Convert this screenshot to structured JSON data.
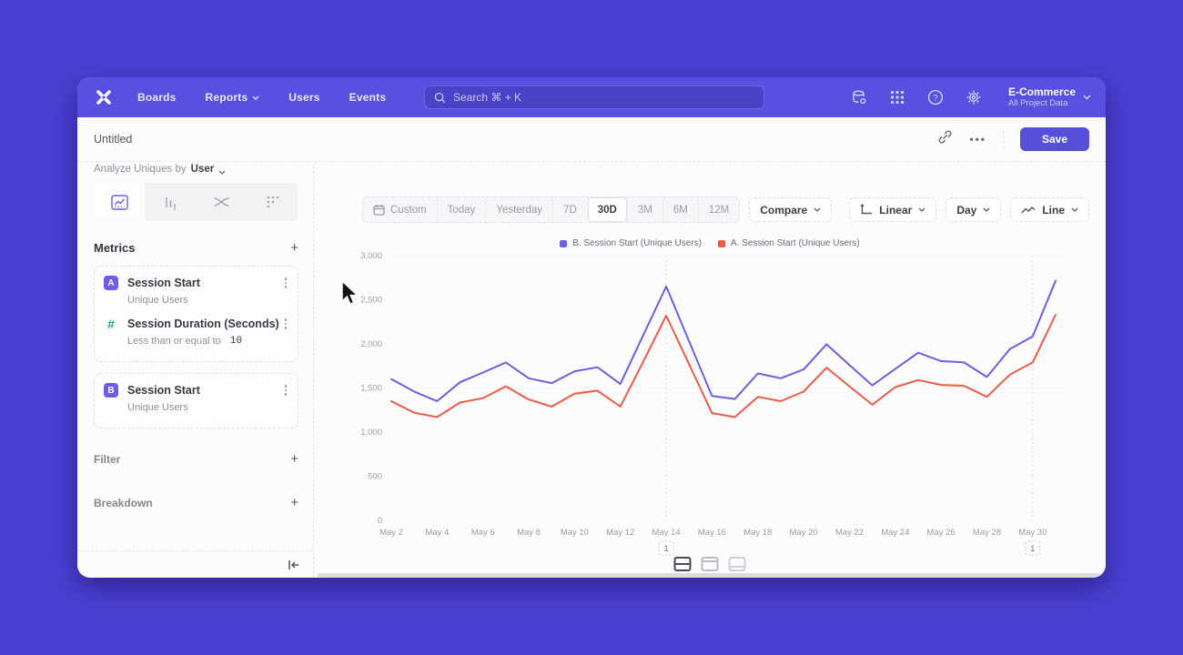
{
  "colors": {
    "backdrop": "#4b40d2",
    "navbar": "#5750e0",
    "accent": "#564fd8",
    "series_b": "#6a5fe0",
    "series_a": "#eb5c45",
    "badge": "#6f5aea",
    "hash_icon": "#19a595"
  },
  "icons": [
    "mixpanel-logo",
    "search-icon",
    "data-icon",
    "apps-grid-icon",
    "help-icon",
    "gear-icon",
    "chevron-down-icon",
    "link-icon",
    "more-icon",
    "line-chart-tab-icon",
    "bar-chart-tab-icon",
    "flow-tab-icon",
    "retention-tab-icon",
    "kebab-icon",
    "plus-icon",
    "collapse-icon",
    "calendar-icon",
    "axes-icon",
    "line-icon",
    "layout-split-icon",
    "layout-top-icon",
    "layout-bottom-icon",
    "cursor-arrow"
  ],
  "nav": {
    "items": [
      "Boards",
      "Reports",
      "Users",
      "Events"
    ],
    "search_placeholder": "Search  ⌘ + K",
    "project": {
      "name": "E-Commerce",
      "subtitle": "All Project Data"
    }
  },
  "header": {
    "title": "Untitled",
    "more_label": "•••",
    "save_label": "Save"
  },
  "sidebar": {
    "analyze_label": "Analyze Uniques by",
    "analyze_value": "User",
    "metrics_title": "Metrics",
    "metrics": [
      {
        "badge": "A",
        "name": "Session Start",
        "subtitle": "Unique Users"
      },
      {
        "badge": "#",
        "name": "Session Duration (Seconds)",
        "subtitle": "Less than or equal to",
        "subtitle_value": "10"
      },
      {
        "badge": "B",
        "name": "Session Start",
        "subtitle": "Unique Users"
      }
    ],
    "sections": [
      {
        "label": "Filter"
      },
      {
        "label": "Breakdown"
      }
    ]
  },
  "toolbar": {
    "ranges": [
      "Custom",
      "Today",
      "Yesterday",
      "7D",
      "30D",
      "3M",
      "6M",
      "12M"
    ],
    "active_range": "30D",
    "compare_label": "Compare",
    "scale_label": "Linear",
    "interval_label": "Day",
    "charttype_label": "Line"
  },
  "chart_data": {
    "type": "line",
    "title": "",
    "xlabel": "",
    "ylabel": "",
    "ylim": [
      0,
      3000
    ],
    "ytick_step": 500,
    "tick_every": 2,
    "grid": true,
    "legend_position": "top",
    "categories": [
      "May 2",
      "May 3",
      "May 4",
      "May 5",
      "May 6",
      "May 7",
      "May 8",
      "May 9",
      "May 10",
      "May 11",
      "May 12",
      "May 13",
      "May 14",
      "May 15",
      "May 16",
      "May 17",
      "May 18",
      "May 19",
      "May 20",
      "May 21",
      "May 22",
      "May 23",
      "May 24",
      "May 25",
      "May 26",
      "May 27",
      "May 28",
      "May 29",
      "May 30",
      "May 31"
    ],
    "series": [
      {
        "name": "B. Session Start (Unique Users)",
        "color": "#6a5fe0",
        "values": [
          1600,
          1460,
          1350,
          1565,
          1675,
          1790,
          1610,
          1555,
          1690,
          1735,
          1545,
          2100,
          2650,
          2030,
          1410,
          1375,
          1665,
          1610,
          1710,
          1995,
          1760,
          1530,
          1715,
          1900,
          1805,
          1790,
          1625,
          1940,
          2085,
          2715
        ]
      },
      {
        "name": "A. Session Start (Unique Users)",
        "color": "#eb5c45",
        "values": [
          1350,
          1220,
          1170,
          1335,
          1385,
          1520,
          1370,
          1290,
          1435,
          1470,
          1290,
          1800,
          2320,
          1770,
          1215,
          1170,
          1400,
          1350,
          1460,
          1730,
          1520,
          1310,
          1510,
          1590,
          1535,
          1525,
          1400,
          1650,
          1790,
          2330
        ]
      }
    ],
    "annotations": [
      {
        "index": 12,
        "label": "1"
      },
      {
        "index": 28,
        "label": "1"
      }
    ]
  }
}
